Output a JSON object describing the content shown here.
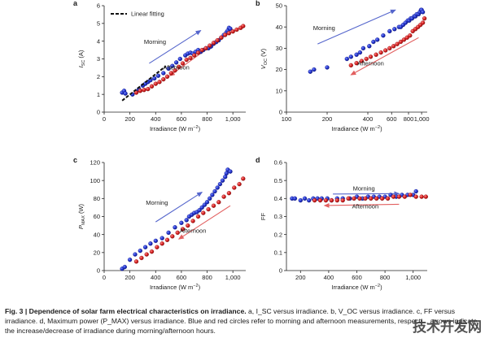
{
  "caption": {
    "lead": "Fig. 3 | Dependence of solar farm electrical characteristics on irradiance.",
    "text": " a, I_SC versus irradiance. b, V_OC versus irradiance. c, FF versus irradiance. d, Maximum power (P_MAX) versus irradiance. Blue and red circles refer to morning and afternoon measurements, respecti... arrows indicate the increase/decrease of irradiance during morning/afternoon hours."
  },
  "watermark": "技术开发网",
  "colors": {
    "morning": "#2233cc",
    "afternoon": "#d42020",
    "morning_arrow": "#5566cc",
    "afternoon_arrow": "#e26060"
  },
  "chart_data": [
    {
      "panel": "a",
      "type": "scatter",
      "xlabel": "Irradiance (W m⁻²)",
      "ylabel": "I_SC (A)",
      "xlim": [
        0,
        1100
      ],
      "ylim": [
        0,
        6
      ],
      "xticks": [
        0,
        200,
        400,
        600,
        800,
        "1,000"
      ],
      "yticks": [
        0,
        1,
        2,
        3,
        4,
        5,
        6
      ],
      "legend": {
        "label": "Linear fitting",
        "position": "top-left"
      },
      "fit_line": {
        "x": [
          140,
          480
        ],
        "y": [
          0.65,
          2.6
        ]
      },
      "annotations": [
        {
          "text": "Morning",
          "x": 395,
          "y": 3.85
        },
        {
          "text": "Afternoon",
          "x": 560,
          "y": 2.4
        }
      ],
      "arrows": [
        {
          "series": "Morning",
          "from": [
            350,
            2.75
          ],
          "to": [
            750,
            4.6
          ]
        },
        {
          "series": "Afternoon",
          "from": [
            920,
            4.2
          ],
          "to": [
            510,
            2.05
          ]
        }
      ],
      "series": [
        {
          "name": "Morning",
          "x": [
            140,
            155,
            165,
            220,
            250,
            270,
            300,
            320,
            340,
            360,
            390,
            420,
            460,
            500,
            530,
            560,
            590,
            630,
            650,
            670,
            690,
            710,
            730,
            750,
            770,
            790,
            810,
            830,
            850,
            870,
            890,
            910,
            930,
            950,
            960,
            970,
            980
          ],
          "y": [
            1.1,
            1.2,
            1.05,
            1.0,
            1.15,
            1.3,
            1.5,
            1.6,
            1.7,
            1.8,
            1.9,
            2.05,
            2.2,
            2.45,
            2.6,
            2.8,
            3.0,
            3.2,
            3.3,
            3.35,
            3.3,
            3.4,
            3.5,
            3.4,
            3.5,
            3.6,
            3.6,
            3.7,
            3.85,
            3.95,
            4.05,
            4.2,
            4.35,
            4.5,
            4.6,
            4.75,
            4.7
          ]
        },
        {
          "name": "Afternoon",
          "x": [
            250,
            280,
            310,
            340,
            370,
            400,
            430,
            460,
            490,
            520,
            550,
            580,
            610,
            640,
            670,
            700,
            730,
            760,
            790,
            820,
            850,
            880,
            910,
            940,
            970,
            1000,
            1030,
            1060,
            1080
          ],
          "y": [
            1.1,
            1.2,
            1.25,
            1.3,
            1.45,
            1.6,
            1.7,
            1.85,
            2.0,
            2.2,
            2.35,
            2.55,
            2.75,
            2.95,
            3.05,
            3.2,
            3.35,
            3.5,
            3.6,
            3.75,
            3.9,
            4.05,
            4.2,
            4.35,
            4.45,
            4.55,
            4.65,
            4.75,
            4.85
          ]
        }
      ]
    },
    {
      "panel": "b",
      "type": "scatter",
      "xlabel": "Irradiance (W m⁻²)",
      "ylabel": "V_OC (V)",
      "xscale": "log",
      "xlim": [
        100,
        1100
      ],
      "ylim": [
        0,
        50
      ],
      "xticks": [
        100,
        200,
        400,
        600,
        800,
        "1,000"
      ],
      "yticks": [
        0,
        10,
        20,
        30,
        40,
        50
      ],
      "annotations": [
        {
          "text": "Morning",
          "x": 190,
          "y": 38.5
        },
        {
          "text": "Afternoon",
          "x": 420,
          "y": 22
        }
      ],
      "arrows": [
        {
          "series": "Morning",
          "from": [
            170,
            32
          ],
          "to": [
            640,
            48
          ]
        },
        {
          "series": "Afternoon",
          "from": [
            950,
            35
          ],
          "to": [
            300,
            17.5
          ]
        }
      ],
      "series": [
        {
          "name": "Morning",
          "x": [
            150,
            160,
            200,
            280,
            300,
            330,
            350,
            370,
            410,
            440,
            470,
            520,
            580,
            630,
            680,
            700,
            730,
            760,
            790,
            810,
            830,
            850,
            880,
            900,
            920,
            950,
            970,
            990,
            1000,
            1020
          ],
          "y": [
            19,
            20,
            21,
            25,
            26,
            27,
            28,
            30,
            31,
            33,
            34,
            36,
            38,
            39,
            40,
            40,
            41,
            42,
            43,
            43,
            44,
            44,
            45,
            45,
            46,
            46,
            47,
            48,
            48,
            47
          ]
        },
        {
          "name": "Afternoon",
          "x": [
            300,
            330,
            360,
            390,
            420,
            460,
            500,
            540,
            580,
            620,
            660,
            700,
            740,
            780,
            820,
            860,
            900,
            940,
            980,
            1020,
            1050
          ],
          "y": [
            22,
            23,
            24,
            25,
            26,
            27,
            28,
            29,
            30,
            31,
            32,
            33,
            34,
            35,
            36,
            38,
            39,
            40,
            41,
            42,
            44
          ]
        }
      ]
    },
    {
      "panel": "c",
      "type": "scatter",
      "xlabel": "Irradiance (W m⁻²)",
      "ylabel": "P_MAX (W)",
      "xlim": [
        0,
        1100
      ],
      "ylim": [
        0,
        120
      ],
      "xticks": [
        0,
        200,
        400,
        600,
        800,
        "1,000"
      ],
      "yticks": [
        0,
        20,
        40,
        60,
        80,
        100,
        120
      ],
      "annotations": [
        {
          "text": "Morning",
          "x": 410,
          "y": 73
        },
        {
          "text": "Afternoon",
          "x": 690,
          "y": 42
        }
      ],
      "arrows": [
        {
          "series": "Morning",
          "from": [
            400,
            54
          ],
          "to": [
            760,
            87
          ]
        },
        {
          "series": "Afternoon",
          "from": [
            980,
            72
          ],
          "to": [
            580,
            35
          ]
        }
      ],
      "series": [
        {
          "name": "Morning",
          "x": [
            140,
            160,
            200,
            240,
            280,
            320,
            360,
            400,
            450,
            500,
            550,
            600,
            640,
            660,
            680,
            700,
            720,
            740,
            760,
            780,
            800,
            820,
            840,
            860,
            880,
            900,
            920,
            940,
            950,
            960,
            980
          ],
          "y": [
            2,
            4,
            12,
            18,
            22,
            26,
            30,
            33,
            36,
            42,
            48,
            53,
            56,
            60,
            62,
            64,
            65,
            67,
            70,
            73,
            76,
            80,
            84,
            88,
            92,
            96,
            100,
            104,
            108,
            112,
            110
          ]
        },
        {
          "name": "Afternoon",
          "x": [
            250,
            290,
            330,
            370,
            410,
            450,
            490,
            530,
            570,
            610,
            650,
            690,
            730,
            770,
            810,
            850,
            890,
            930,
            970,
            1010,
            1050,
            1080
          ],
          "y": [
            10,
            14,
            18,
            21,
            26,
            30,
            34,
            38,
            42,
            46,
            50,
            55,
            60,
            64,
            68,
            72,
            76,
            82,
            86,
            92,
            96,
            102
          ]
        }
      ]
    },
    {
      "panel": "d",
      "type": "scatter",
      "xlabel": "Irradiance (W m⁻²)",
      "ylabel": "FF",
      "xlim": [
        100,
        1100
      ],
      "ylim": [
        0,
        0.6
      ],
      "xticks": [
        200,
        400,
        600,
        800,
        "1,000"
      ],
      "yticks": [
        0,
        0.1,
        0.2,
        0.3,
        0.4,
        0.5,
        0.6
      ],
      "annotations": [
        {
          "text": "Morning",
          "x": 650,
          "y": 0.445
        },
        {
          "text": "Afternoon",
          "x": 660,
          "y": 0.345
        }
      ],
      "arrows": [
        {
          "series": "Morning",
          "from": [
            430,
            0.425
          ],
          "to": [
            900,
            0.427
          ]
        },
        {
          "series": "Afternoon",
          "from": [
            900,
            0.368
          ],
          "to": [
            370,
            0.361
          ]
        }
      ],
      "series": [
        {
          "name": "Morning",
          "x": [
            140,
            160,
            200,
            230,
            260,
            290,
            320,
            350,
            390,
            420,
            460,
            500,
            550,
            600,
            640,
            680,
            720,
            760,
            800,
            840,
            880,
            920,
            960,
            1000,
            1020
          ],
          "y": [
            0.4,
            0.4,
            0.39,
            0.4,
            0.39,
            0.4,
            0.4,
            0.4,
            0.4,
            0.39,
            0.4,
            0.4,
            0.4,
            0.41,
            0.4,
            0.41,
            0.41,
            0.41,
            0.41,
            0.42,
            0.41,
            0.42,
            0.42,
            0.42,
            0.44
          ]
        },
        {
          "name": "Afternoon",
          "x": [
            300,
            340,
            380,
            420,
            460,
            500,
            540,
            580,
            620,
            660,
            700,
            740,
            780,
            820,
            860,
            900,
            940,
            980,
            1020,
            1060,
            1090
          ],
          "y": [
            0.39,
            0.39,
            0.39,
            0.39,
            0.39,
            0.39,
            0.4,
            0.4,
            0.4,
            0.4,
            0.4,
            0.4,
            0.4,
            0.4,
            0.41,
            0.41,
            0.41,
            0.42,
            0.41,
            0.41,
            0.41
          ]
        }
      ]
    }
  ]
}
